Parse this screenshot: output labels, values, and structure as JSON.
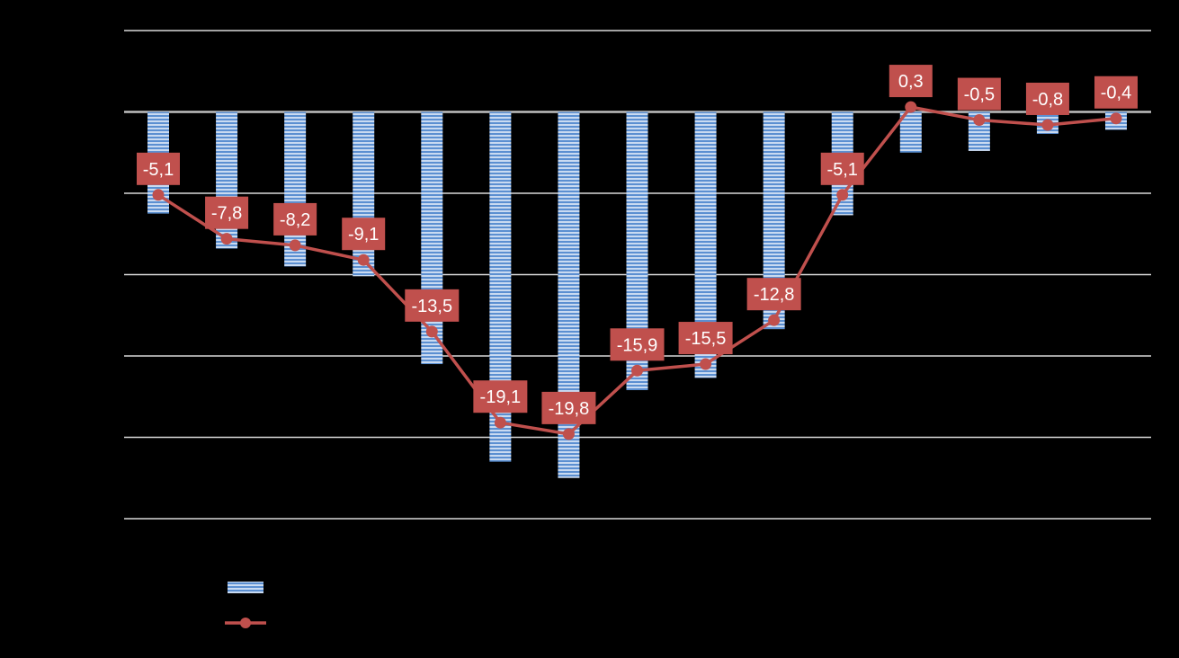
{
  "chart_data": {
    "type": "bar",
    "categories": [
      "",
      "",
      "",
      "",
      "",
      "",
      "",
      "",
      "",
      "",
      "",
      "",
      "",
      "",
      ""
    ],
    "series": [
      {
        "type": "bar",
        "color": "#6F9ED8",
        "values": [
          -12.5,
          -16.8,
          -19.0,
          -20.2,
          -31.0,
          -43.0,
          -45.0,
          -34.2,
          -32.7,
          -26.7,
          -12.7,
          -5.0,
          -4.8,
          -2.7,
          -2.2
        ]
      },
      {
        "type": "line",
        "color": "#C0504D",
        "values": [
          -5.1,
          -7.8,
          -8.2,
          -9.1,
          -13.5,
          -19.1,
          -19.8,
          -15.9,
          -15.5,
          -12.8,
          -5.1,
          0.3,
          -0.5,
          -0.8,
          -0.4
        ],
        "labels": [
          "-5,1",
          "-7,8",
          "-8,2",
          "-9,1",
          "-13,5",
          "-19,1",
          "-19,8",
          "-15,9",
          "-15,5",
          "-12,8",
          "-5,1",
          "0,3",
          "-0,5",
          "-0,8",
          "-0,4"
        ]
      }
    ],
    "bar_axis": {
      "ylim": [
        -50,
        10
      ],
      "gridlines": [
        10,
        0,
        -10,
        -20,
        -30,
        -40,
        -50
      ]
    },
    "line_axis": {
      "ylim": [
        -25,
        5
      ]
    },
    "grid": true,
    "legend": {
      "position": "bottom-left",
      "entries": [
        "",
        ""
      ]
    }
  }
}
